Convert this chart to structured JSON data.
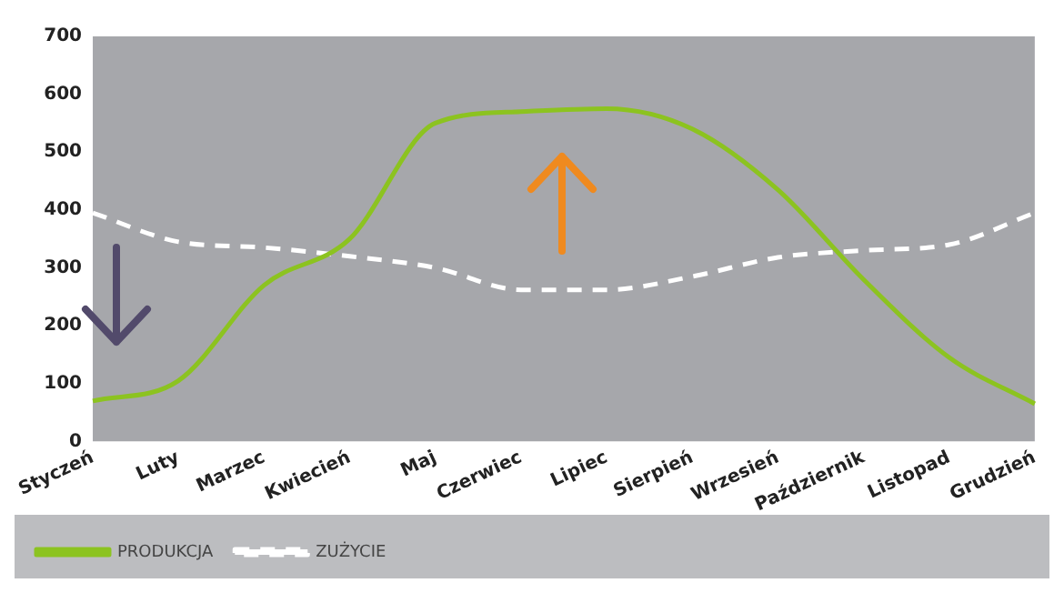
{
  "chart_data": {
    "type": "line",
    "categories": [
      "Styczeń",
      "Luty",
      "Marzec",
      "Kwiecień",
      "Maj",
      "Czerwiec",
      "Lipiec",
      "Sierpień",
      "Wrzesień",
      "Październik",
      "Listopad",
      "Grudzień"
    ],
    "series": [
      {
        "name": "PRODUKCJA",
        "color": "#8cc320",
        "values": [
          70,
          105,
          270,
          350,
          550,
          570,
          575,
          540,
          435,
          280,
          145,
          65
        ]
      },
      {
        "name": "ZUŻYCIE",
        "color": "#ffffff",
        "line_style": "dashed",
        "values": [
          395,
          345,
          335,
          320,
          300,
          262,
          262,
          285,
          318,
          330,
          340,
          395
        ]
      }
    ],
    "ylim": [
      0,
      700
    ],
    "yticks": [
      0,
      100,
      200,
      300,
      400,
      500,
      600,
      700
    ],
    "grid": false,
    "legend": "bottom",
    "marker": "none"
  }
}
